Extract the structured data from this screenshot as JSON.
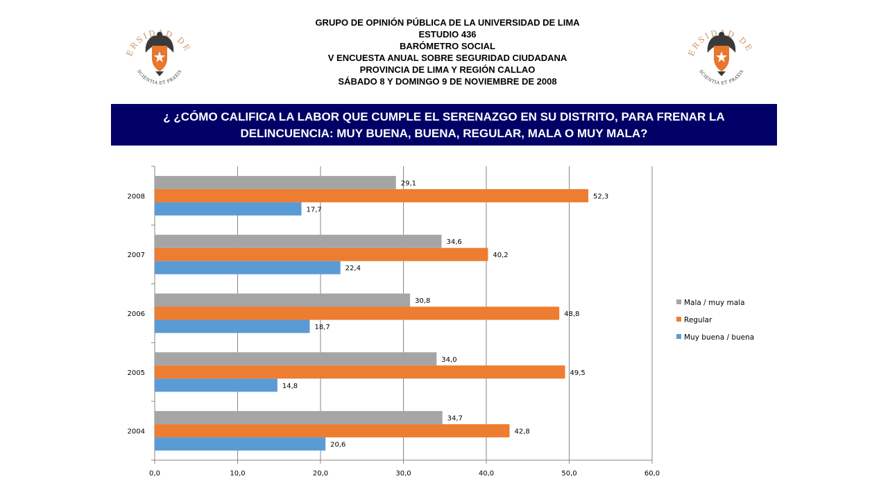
{
  "header": {
    "line1": "GRUPO DE OPINIÓN PÚBLICA DE LA UNIVERSIDAD DE LIMA",
    "line2": "ESTUDIO 436",
    "line3": "BARÓMETRO SOCIAL",
    "line4": "V ENCUESTA ANUAL SOBRE SEGURIDAD CIUDADANA",
    "line5": "PROVINCIA DE LIMA Y REGIÓN CALLAO",
    "line6": "SÁBADO 8 Y DOMINGO 9 DE NOVIEMBRE DE 2008"
  },
  "question": "¿ ¿CÓMO CALIFICA LA LABOR QUE CUMPLE EL SERENAZGO EN SU DISTRITO, PARA FRENAR LA DELINCUENCIA: MUY BUENA, BUENA, REGULAR, MALA O MUY MALA?",
  "logo": {
    "text_top": "UNIVERSIDAD DE LIMA",
    "text_bottom": "SCIENTIA ET PRAXIS",
    "text_color": "#c8956b",
    "shield_color": "#e8762d",
    "icon": "eagle-shield-icon"
  },
  "chart_data": {
    "type": "bar",
    "orientation": "horizontal",
    "categories": [
      "2008",
      "2007",
      "2006",
      "2005",
      "2004"
    ],
    "series": [
      {
        "name": "Mala / muy mala",
        "color": "#a5a5a5",
        "values": [
          29.1,
          34.6,
          30.8,
          34.0,
          34.7
        ]
      },
      {
        "name": "Regular",
        "color": "#ed7d31",
        "values": [
          52.3,
          40.2,
          48.8,
          49.5,
          42.8
        ]
      },
      {
        "name": "Muy buena / buena",
        "color": "#5b9bd5",
        "values": [
          17.7,
          22.4,
          18.7,
          14.8,
          20.6
        ]
      }
    ],
    "x_ticks": [
      "0,0",
      "10,0",
      "20,0",
      "30,0",
      "40,0",
      "50,0",
      "60,0"
    ],
    "xlim": [
      0,
      60
    ],
    "grid": "vertical",
    "legend_position": "right",
    "data_labels": [
      [
        "29,1",
        "52,3",
        "17,7"
      ],
      [
        "34,6",
        "40,2",
        "22,4"
      ],
      [
        "30,8",
        "48,8",
        "18,7"
      ],
      [
        "34,0",
        "49,5",
        "14,8"
      ],
      [
        "34,7",
        "42,8",
        "20,6"
      ]
    ]
  }
}
